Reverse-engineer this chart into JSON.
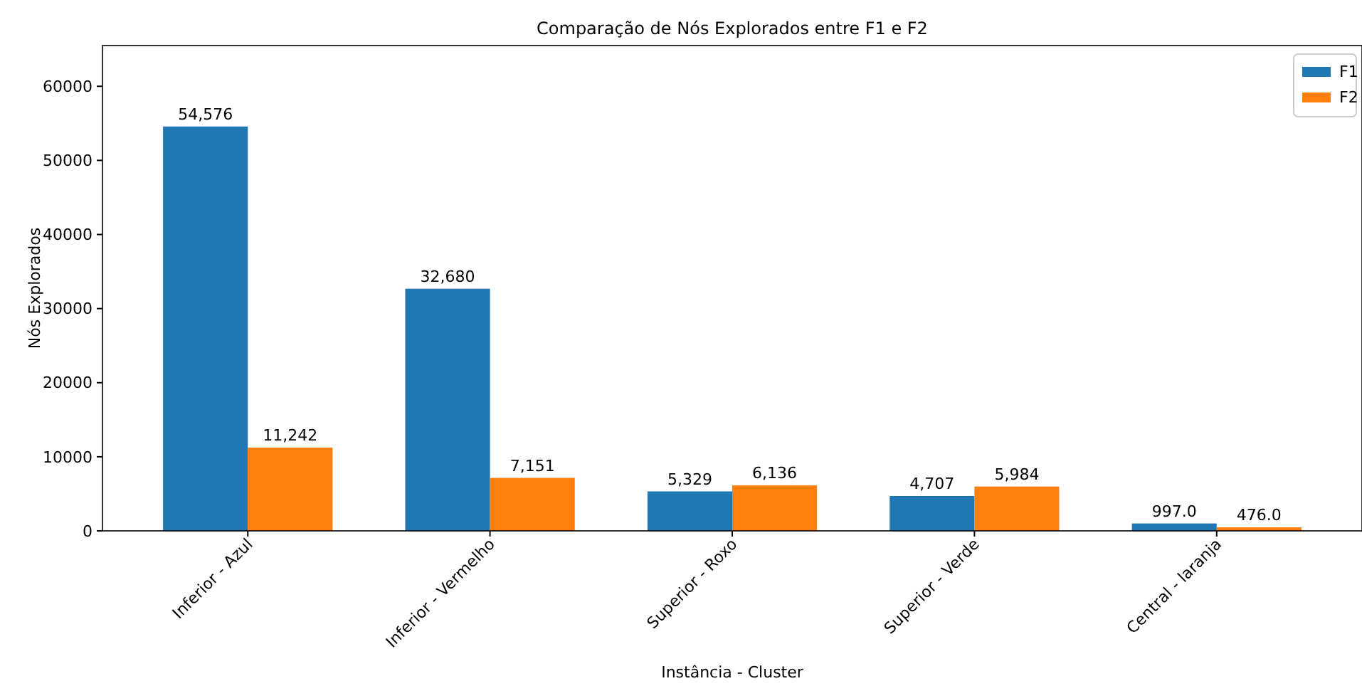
{
  "chart_data": {
    "type": "bar",
    "title": "Comparação de Nós Explorados entre F1 e F2",
    "xlabel": "Instância - Cluster",
    "ylabel": "Nós Explorados",
    "categories": [
      "Inferior - Azul",
      "Inferior - Vermelho",
      "Superior - Roxo",
      "Superior - Verde",
      "Central - laranja"
    ],
    "series": [
      {
        "name": "F1",
        "color": "#1f77b4",
        "values": [
          54576,
          32680,
          5329,
          4707,
          997
        ],
        "value_labels": [
          "54,576",
          "32,680",
          "5,329",
          "4,707",
          "997.0"
        ]
      },
      {
        "name": "F2",
        "color": "#ff7f0e",
        "values": [
          11242,
          7151,
          6136,
          5984,
          476
        ],
        "value_labels": [
          "11,242",
          "7,151",
          "6,136",
          "5,984",
          "476.0"
        ]
      }
    ],
    "ylim": [
      0,
      65500
    ],
    "yticks": [
      0,
      10000,
      20000,
      30000,
      40000,
      50000,
      60000
    ],
    "legend": "top right",
    "grid": false
  }
}
